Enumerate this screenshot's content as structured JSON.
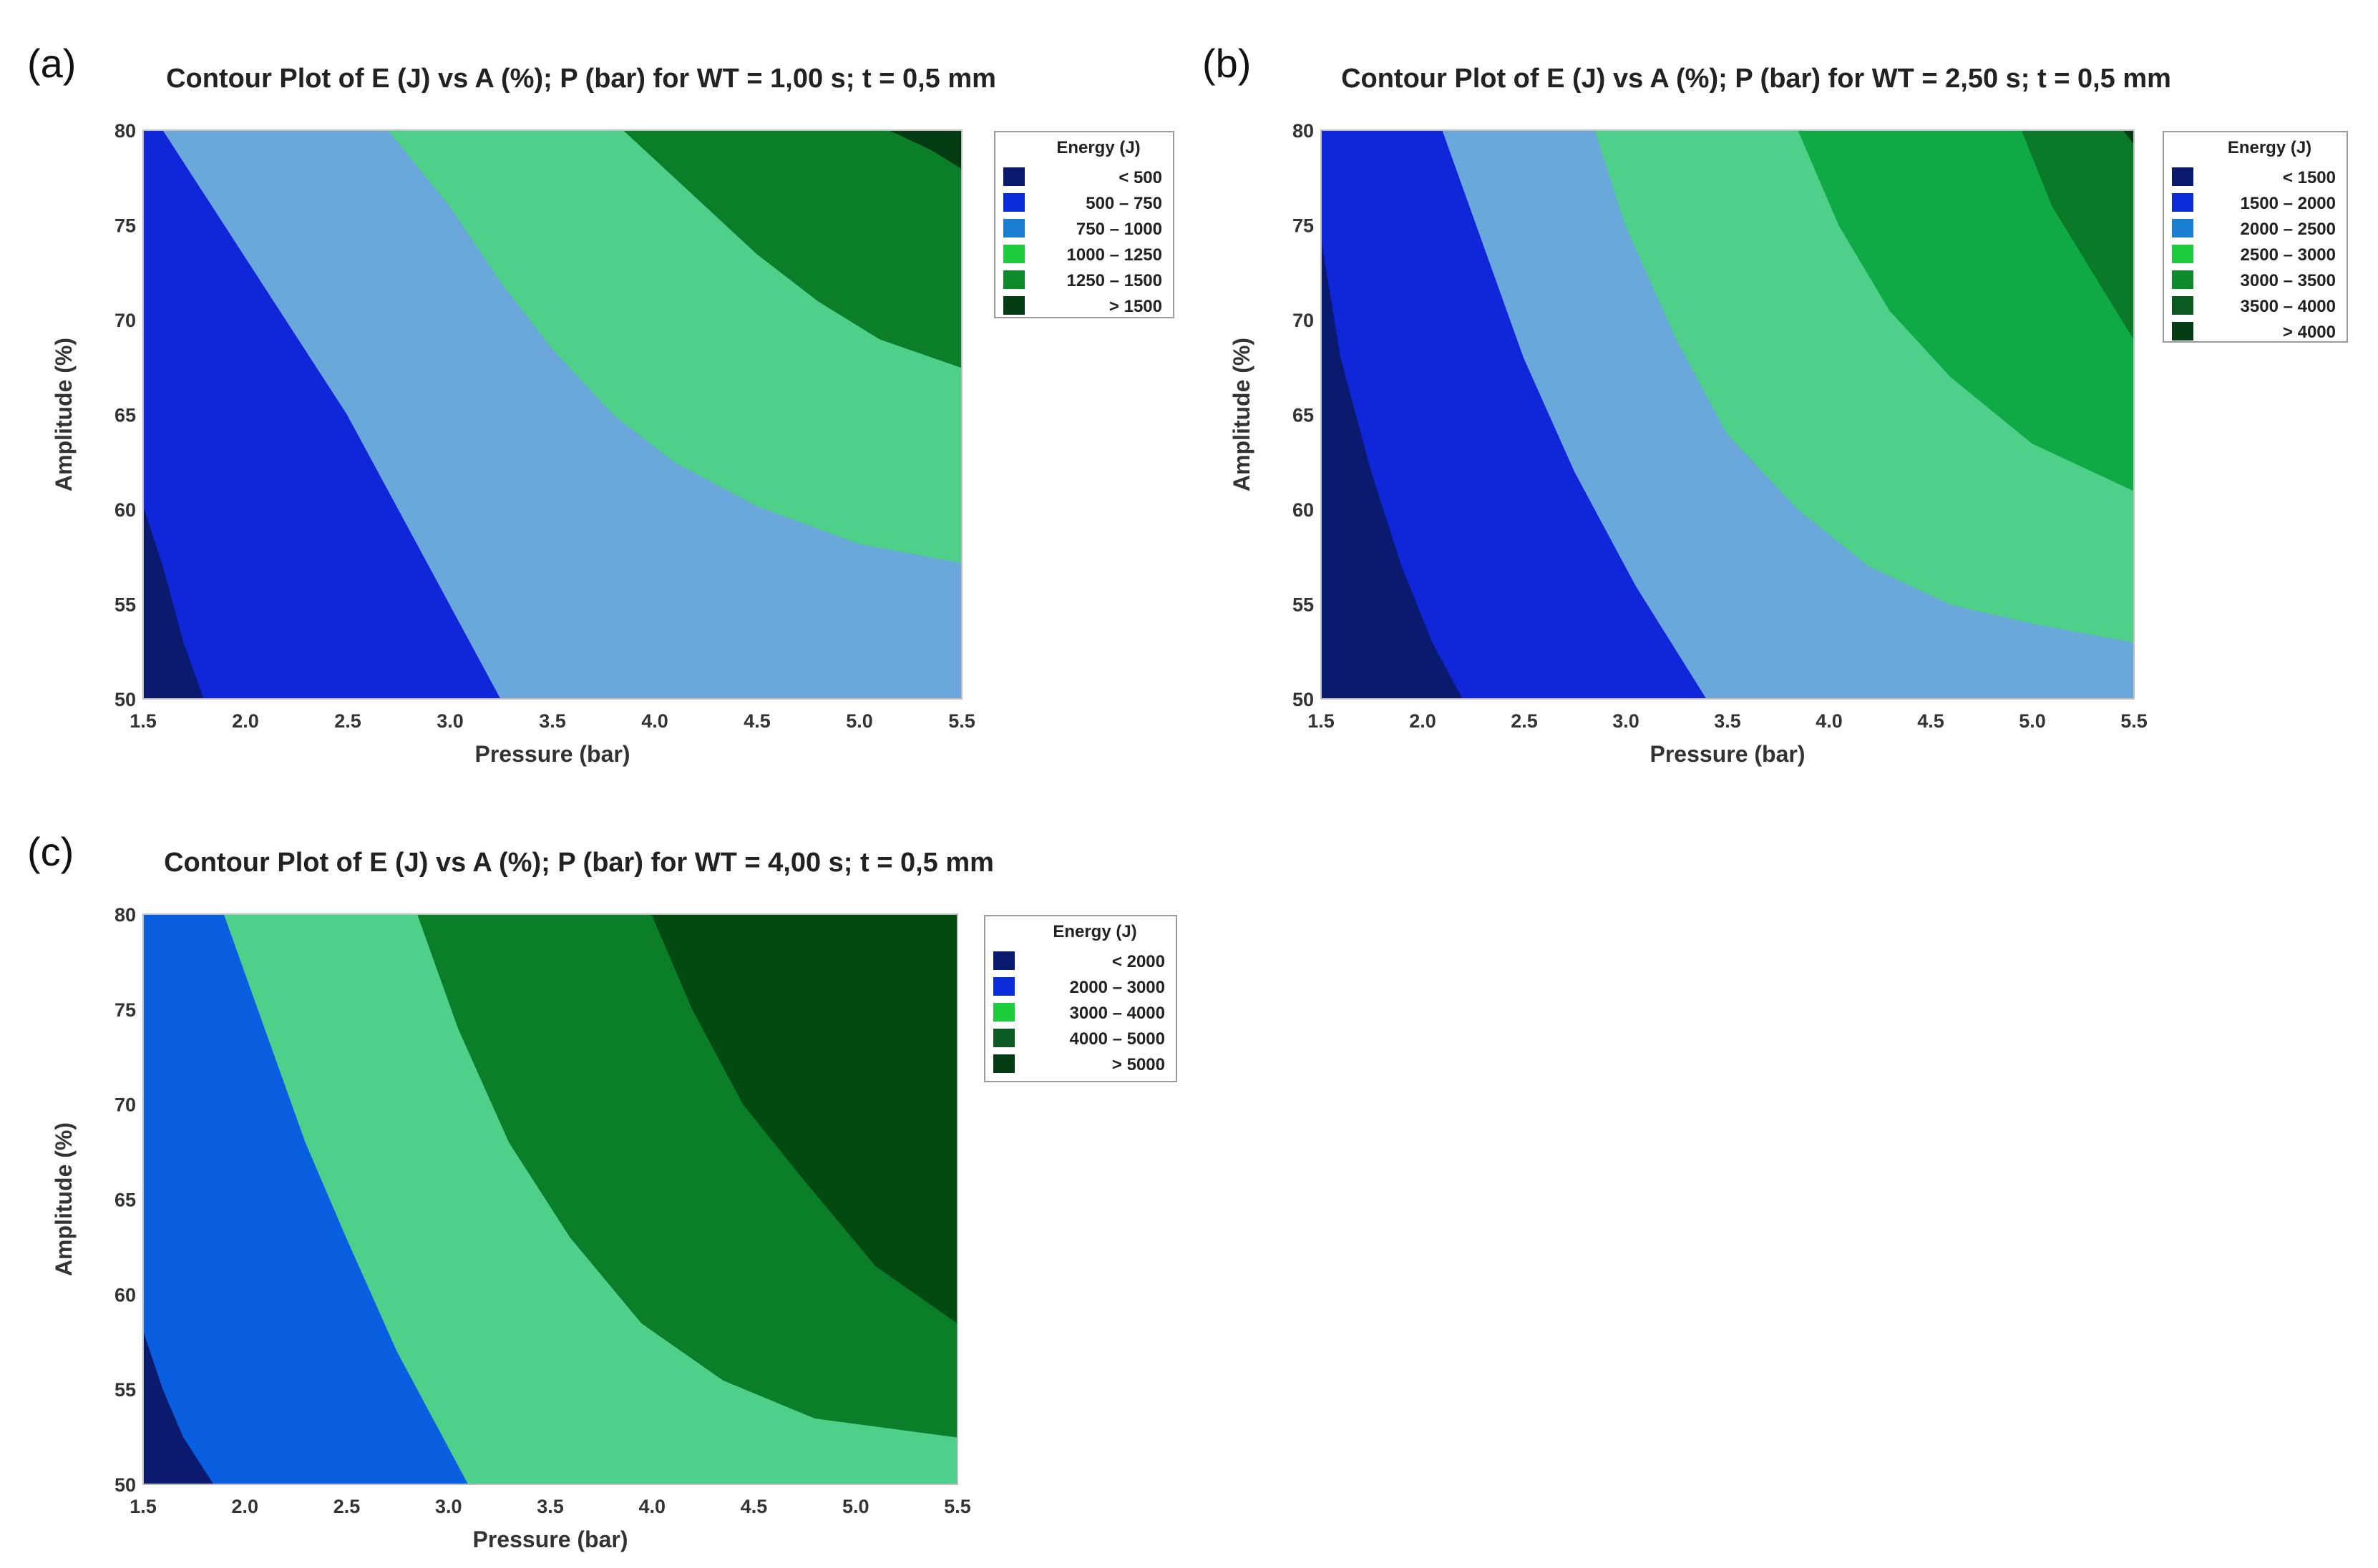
{
  "chart_data": [
    {
      "type": "contour",
      "panel_label": "(a)",
      "title": "Contour Plot of E (J) vs A (%); P (bar) for WT = 1,00 s; t = 0,5 mm",
      "xlabel": "Pressure (bar)",
      "ylabel": "Amplitude (%)",
      "xlim": [
        1.5,
        5.5
      ],
      "ylim": [
        50,
        80
      ],
      "xticks": [
        "1.5",
        "2.0",
        "2.5",
        "3.0",
        "3.5",
        "4.0",
        "4.5",
        "5.0",
        "5.5"
      ],
      "yticks": [
        "50",
        "55",
        "60",
        "65",
        "70",
        "75",
        "80"
      ],
      "legend_title": "Energy (J)",
      "levels": [
        {
          "label": "<  500",
          "color": "#0a1a6e"
        },
        {
          "label": "500  –  750",
          "color": "#0b2cd9"
        },
        {
          "label": "750  –  1000",
          "color": "#1a7fd4"
        },
        {
          "label": "1000  –  1250",
          "color": "#1ccc3c"
        },
        {
          "label": "1250  –  1500",
          "color": "#0c8a2c"
        },
        {
          "label": ">  1500",
          "color": "#033b12"
        }
      ],
      "regions": [
        {
          "color": "#0a1a6e",
          "boundary": [
            [
              1.5,
              50
            ],
            [
              1.5,
              60.3
            ],
            [
              1.6,
              57
            ],
            [
              1.7,
              53
            ],
            [
              1.8,
              50
            ]
          ]
        },
        {
          "color": "#0f27d8",
          "boundary": [
            [
              1.5,
              60.3
            ],
            [
              1.5,
              80
            ],
            [
              1.6,
              80
            ],
            [
              1.9,
              75
            ],
            [
              2.2,
              70
            ],
            [
              2.5,
              65
            ],
            [
              2.75,
              60
            ],
            [
              3.0,
              55
            ],
            [
              3.25,
              50
            ],
            [
              1.8,
              50
            ],
            [
              1.7,
              53
            ],
            [
              1.6,
              57
            ]
          ]
        },
        {
          "color": "#6aa7da",
          "boundary": [
            [
              1.6,
              80
            ],
            [
              2.7,
              80
            ],
            [
              3.0,
              76
            ],
            [
              3.25,
              72
            ],
            [
              3.5,
              68.5
            ],
            [
              3.8,
              65
            ],
            [
              4.1,
              62.5
            ],
            [
              4.5,
              60.2
            ],
            [
              5.0,
              58.2
            ],
            [
              5.5,
              57.2
            ],
            [
              5.5,
              50
            ],
            [
              3.25,
              50
            ],
            [
              3.0,
              55
            ],
            [
              2.75,
              60
            ],
            [
              2.5,
              65
            ],
            [
              2.2,
              70
            ],
            [
              1.9,
              75
            ]
          ]
        },
        {
          "color": "#4ecf8a",
          "boundary": [
            [
              2.7,
              80
            ],
            [
              3.85,
              80
            ],
            [
              4.0,
              78.5
            ],
            [
              4.25,
              76
            ],
            [
              4.5,
              73.5
            ],
            [
              4.8,
              71
            ],
            [
              5.1,
              69
            ],
            [
              5.5,
              67.5
            ],
            [
              5.5,
              57.2
            ],
            [
              5.0,
              58.2
            ],
            [
              4.5,
              60.2
            ],
            [
              4.1,
              62.5
            ],
            [
              3.8,
              65
            ],
            [
              3.5,
              68.5
            ],
            [
              3.25,
              72
            ],
            [
              3.0,
              76
            ]
          ]
        },
        {
          "color": "#0b7e2a",
          "boundary": [
            [
              3.85,
              80
            ],
            [
              5.5,
              80
            ],
            [
              5.5,
              67.5
            ],
            [
              5.1,
              69
            ],
            [
              4.8,
              71
            ],
            [
              4.5,
              73.5
            ],
            [
              4.25,
              76
            ],
            [
              4.0,
              78.5
            ]
          ]
        },
        {
          "color": "#033b12",
          "boundary": [
            [
              5.15,
              80
            ],
            [
              5.5,
              80
            ],
            [
              5.5,
              78
            ],
            [
              5.35,
              79
            ]
          ]
        }
      ]
    },
    {
      "type": "contour",
      "panel_label": "(b)",
      "title": "Contour Plot of E (J) vs A (%); P (bar) for WT = 2,50 s; t = 0,5 mm",
      "xlabel": "Pressure (bar)",
      "ylabel": "Amplitude (%)",
      "xlim": [
        1.5,
        5.5
      ],
      "ylim": [
        50,
        80
      ],
      "xticks": [
        "1.5",
        "2.0",
        "2.5",
        "3.0",
        "3.5",
        "4.0",
        "4.5",
        "5.0",
        "5.5"
      ],
      "yticks": [
        "50",
        "55",
        "60",
        "65",
        "70",
        "75",
        "80"
      ],
      "legend_title": "Energy (J)",
      "levels": [
        {
          "label": "<  1500",
          "color": "#0a1a6e"
        },
        {
          "label": "1500  –  2000",
          "color": "#0b2cd9"
        },
        {
          "label": "2000  –  2500",
          "color": "#1a7fd4"
        },
        {
          "label": "2500  –  3000",
          "color": "#1ccc3c"
        },
        {
          "label": "3000  –  3500",
          "color": "#0c8a2c"
        },
        {
          "label": "3500  –  4000",
          "color": "#0a5a22"
        },
        {
          "label": ">  4000",
          "color": "#033b12"
        }
      ],
      "regions": [
        {
          "color": "#0a1a6e",
          "boundary": [
            [
              1.5,
              50
            ],
            [
              1.5,
              74.5
            ],
            [
              1.6,
              68
            ],
            [
              1.75,
              62
            ],
            [
              1.9,
              57
            ],
            [
              2.05,
              53
            ],
            [
              2.2,
              50
            ]
          ]
        },
        {
          "color": "#0f27d8",
          "boundary": [
            [
              1.5,
              74.5
            ],
            [
              1.5,
              80
            ],
            [
              2.1,
              80
            ],
            [
              2.3,
              74
            ],
            [
              2.5,
              68
            ],
            [
              2.75,
              62
            ],
            [
              3.05,
              56
            ],
            [
              3.4,
              50
            ],
            [
              2.2,
              50
            ],
            [
              2.05,
              53
            ],
            [
              1.9,
              57
            ],
            [
              1.75,
              62
            ],
            [
              1.6,
              68
            ]
          ]
        },
        {
          "color": "#6aa7da",
          "boundary": [
            [
              2.1,
              80
            ],
            [
              2.85,
              80
            ],
            [
              3.0,
              75
            ],
            [
              3.25,
              69
            ],
            [
              3.5,
              64
            ],
            [
              3.85,
              60
            ],
            [
              4.2,
              57
            ],
            [
              4.6,
              55
            ],
            [
              5.0,
              54
            ],
            [
              5.5,
              53
            ],
            [
              5.5,
              50
            ],
            [
              3.4,
              50
            ],
            [
              3.05,
              56
            ],
            [
              2.75,
              62
            ],
            [
              2.5,
              68
            ],
            [
              2.3,
              74
            ]
          ]
        },
        {
          "color": "#4ecf8a",
          "boundary": [
            [
              2.85,
              80
            ],
            [
              3.85,
              80
            ],
            [
              4.05,
              75
            ],
            [
              4.3,
              70.5
            ],
            [
              4.6,
              67
            ],
            [
              5.0,
              63.5
            ],
            [
              5.5,
              61
            ],
            [
              5.5,
              53
            ],
            [
              5.0,
              54
            ],
            [
              4.6,
              55
            ],
            [
              4.2,
              57
            ],
            [
              3.85,
              60
            ],
            [
              3.5,
              64
            ],
            [
              3.25,
              69
            ],
            [
              3.0,
              75
            ]
          ]
        },
        {
          "color": "#0faa45",
          "boundary": [
            [
              3.85,
              80
            ],
            [
              4.95,
              80
            ],
            [
              5.1,
              76
            ],
            [
              5.3,
              72.5
            ],
            [
              5.5,
              69
            ],
            [
              5.5,
              61
            ],
            [
              5.0,
              63.5
            ],
            [
              4.6,
              67
            ],
            [
              4.3,
              70.5
            ],
            [
              4.05,
              75
            ]
          ]
        },
        {
          "color": "#0a7a2a",
          "boundary": [
            [
              4.95,
              80
            ],
            [
              5.5,
              80
            ],
            [
              5.5,
              69
            ],
            [
              5.3,
              72.5
            ],
            [
              5.1,
              76
            ]
          ]
        },
        {
          "color": "#033b12",
          "boundary": [
            [
              5.45,
              80
            ],
            [
              5.5,
              80
            ],
            [
              5.5,
              79.3
            ]
          ]
        }
      ]
    },
    {
      "type": "contour",
      "panel_label": "(c)",
      "title": "Contour Plot of E (J) vs A (%); P (bar) for WT = 4,00 s; t = 0,5 mm",
      "xlabel": "Pressure (bar)",
      "ylabel": "Amplitude (%)",
      "xlim": [
        1.5,
        5.5
      ],
      "ylim": [
        50,
        80
      ],
      "xticks": [
        "1.5",
        "2.0",
        "2.5",
        "3.0",
        "3.5",
        "4.0",
        "4.5",
        "5.0",
        "5.5"
      ],
      "yticks": [
        "50",
        "55",
        "60",
        "65",
        "70",
        "75",
        "80"
      ],
      "legend_title": "Energy (J)",
      "levels": [
        {
          "label": "<  2000",
          "color": "#0a1a6e"
        },
        {
          "label": "2000  –  3000",
          "color": "#0b2cd9"
        },
        {
          "label": "3000  –  4000",
          "color": "#1ccc3c"
        },
        {
          "label": "4000  –  5000",
          "color": "#0a5a22"
        },
        {
          "label": ">  5000",
          "color": "#033b12"
        }
      ],
      "regions": [
        {
          "color": "#0a1a6e",
          "boundary": [
            [
              1.5,
              50
            ],
            [
              1.5,
              58.2
            ],
            [
              1.6,
              55
            ],
            [
              1.7,
              52.5
            ],
            [
              1.85,
              50
            ]
          ]
        },
        {
          "color": "#0a5ee0",
          "boundary": [
            [
              1.5,
              58.2
            ],
            [
              1.5,
              80
            ],
            [
              1.9,
              80
            ],
            [
              2.1,
              74
            ],
            [
              2.3,
              68
            ],
            [
              2.5,
              63
            ],
            [
              2.75,
              57
            ],
            [
              3.1,
              50
            ],
            [
              1.85,
              50
            ],
            [
              1.7,
              52.5
            ],
            [
              1.6,
              55
            ]
          ]
        },
        {
          "color": "#4ecf8a",
          "boundary": [
            [
              1.9,
              80
            ],
            [
              2.85,
              80
            ],
            [
              3.05,
              74
            ],
            [
              3.3,
              68
            ],
            [
              3.6,
              63
            ],
            [
              3.95,
              58.5
            ],
            [
              4.35,
              55.5
            ],
            [
              4.8,
              53.5
            ],
            [
              5.5,
              52.5
            ],
            [
              5.5,
              50
            ],
            [
              3.1,
              50
            ],
            [
              2.75,
              57
            ],
            [
              2.5,
              63
            ],
            [
              2.3,
              68
            ],
            [
              2.1,
              74
            ]
          ]
        },
        {
          "color": "#0b7e2a",
          "boundary": [
            [
              2.85,
              80
            ],
            [
              4.0,
              80
            ],
            [
              4.2,
              75
            ],
            [
              4.45,
              70
            ],
            [
              4.75,
              66
            ],
            [
              5.1,
              61.5
            ],
            [
              5.5,
              58.5
            ],
            [
              5.5,
              52.5
            ],
            [
              4.8,
              53.5
            ],
            [
              4.35,
              55.5
            ],
            [
              3.95,
              58.5
            ],
            [
              3.6,
              63
            ],
            [
              3.3,
              68
            ],
            [
              3.05,
              74
            ]
          ]
        },
        {
          "color": "#034a12",
          "boundary": [
            [
              4.0,
              80
            ],
            [
              5.5,
              80
            ],
            [
              5.5,
              58.5
            ],
            [
              5.1,
              61.5
            ],
            [
              4.75,
              66
            ],
            [
              4.45,
              70
            ],
            [
              4.2,
              75
            ]
          ]
        }
      ]
    }
  ]
}
